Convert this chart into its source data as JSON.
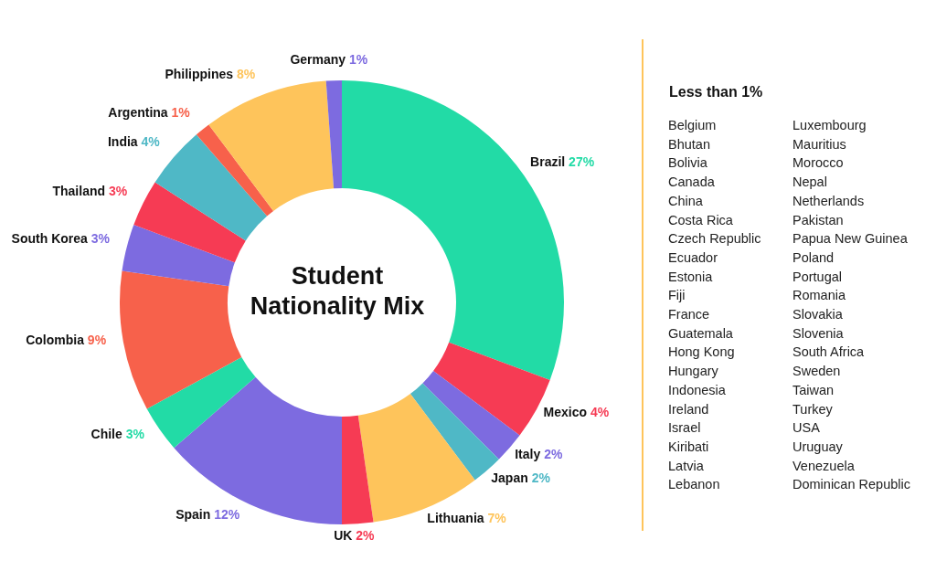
{
  "chart_data": {
    "type": "donut",
    "title": "Student Nationality Mix",
    "categories": [
      "Brazil",
      "Mexico",
      "Italy",
      "Japan",
      "Lithuania",
      "UK",
      "Spain",
      "Chile",
      "Colombia",
      "South Korea",
      "Thailand",
      "India",
      "Argentina",
      "Philippines",
      "Germany"
    ],
    "values": [
      27,
      4,
      2,
      2,
      7,
      2,
      12,
      3,
      9,
      3,
      3,
      4,
      1,
      8,
      1
    ],
    "colors": [
      "#22dba6",
      "#f63b54",
      "#7d6be0",
      "#4fb8c6",
      "#fec45b",
      "#f63b54",
      "#7d6be0",
      "#22dba6",
      "#f7614b",
      "#7d6be0",
      "#f63b54",
      "#4fb8c6",
      "#f7614b",
      "#fec45b",
      "#7d6be0"
    ],
    "value_labels": [
      "27%",
      "4%",
      "2%",
      "2%",
      "7%",
      "2%",
      "12%",
      "3%",
      "9%",
      "3%",
      "3%",
      "4%",
      "1%",
      "8%",
      "1%"
    ],
    "annotations": [
      "Less than 1%",
      "Belgium",
      "Bhutan",
      "Bolivia",
      "Canada",
      "China",
      "Costa Rica",
      "Czech Republic",
      "Ecuador",
      "Estonia",
      "Fiji",
      "France",
      "Guatemala",
      "Hong Kong",
      "Hungary",
      "Indonesia",
      "Ireland",
      "Israel",
      "Kiribati",
      "Latvia",
      "Lebanon",
      "Luxembourg",
      "Mauritius",
      "Morocco",
      "Nepal",
      "Netherlands",
      "Pakistan",
      "Papua New Guinea",
      "Poland",
      "Portugal",
      "Romania",
      "Slovakia",
      "Slovenia",
      "South Africa",
      "Sweden",
      "Taiwan",
      "Turkey",
      "USA",
      "Uruguay",
      "Venezuela",
      "Dominican Republic"
    ]
  }
}
